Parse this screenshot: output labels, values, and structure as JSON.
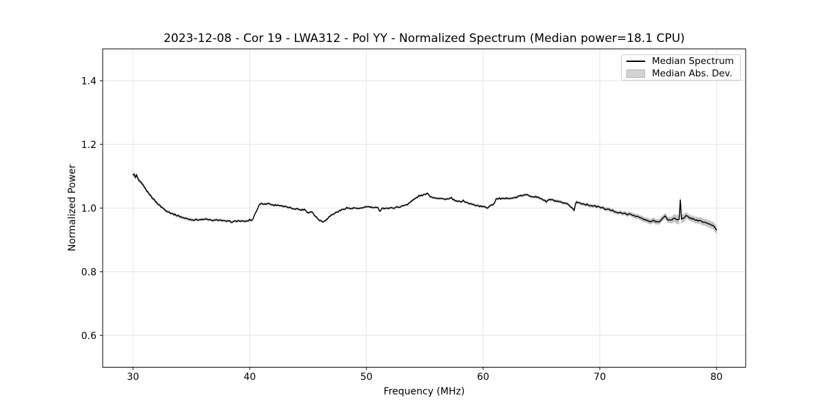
{
  "figure": {
    "background": "#ffffff"
  },
  "chart_data": {
    "type": "line",
    "title": "2023-12-08 - Cor 19 - LWA312 - Pol YY - Normalized Spectrum (Median power=18.1 CPU)",
    "xlabel": "Frequency (MHz)",
    "ylabel": "Normalized Power",
    "xlim": [
      27.4,
      82.5
    ],
    "ylim": [
      0.5,
      1.5
    ],
    "x_range_mhz": [
      30,
      80
    ],
    "xticks": [
      30,
      40,
      50,
      60,
      70,
      80
    ],
    "xtick_labels": [
      "30",
      "40",
      "50",
      "60",
      "70",
      "80"
    ],
    "yticks": [
      0.6,
      0.8,
      1.0,
      1.2,
      1.4
    ],
    "ytick_labels": [
      "0.6",
      "0.8",
      "1.0",
      "1.2",
      "1.4"
    ],
    "grid": true,
    "legend": {
      "position": "upper right",
      "entries": [
        {
          "label": "Median Spectrum",
          "type": "line",
          "color": "#000000"
        },
        {
          "label": "Median Abs. Dev.",
          "type": "patch",
          "fill": "#d3d3d3",
          "edge": "#aeaeae"
        }
      ]
    },
    "colors": {
      "line": "#000000",
      "band": "#bfbfbf",
      "grid": "#e4e4e4",
      "spine": "#000000",
      "text": "#000000"
    },
    "series": [
      {
        "name": "Median Spectrum",
        "anchors_x": [
          30.0,
          30.1,
          30.2,
          30.3,
          30.45,
          30.6,
          30.8,
          31.0,
          31.3,
          31.6,
          32.0,
          32.4,
          32.8,
          33.2,
          33.6,
          34.0,
          34.4,
          34.8,
          35.2,
          35.6,
          36.0,
          36.2,
          36.5,
          37.0,
          37.4,
          37.8,
          38.2,
          38.6,
          39.0,
          39.4,
          39.8,
          40.0,
          40.2,
          40.5,
          40.8,
          41.0,
          41.3,
          41.6,
          42.0,
          42.4,
          42.8,
          43.2,
          43.6,
          44.0,
          44.4,
          44.7,
          45.0,
          45.3,
          45.6,
          46.0,
          46.3,
          46.6,
          47.0,
          47.5,
          48.0,
          48.3,
          48.6,
          49.0,
          49.4,
          49.8,
          50.2,
          50.6,
          51.0,
          51.15,
          51.3,
          51.6,
          52.0,
          52.5,
          53.0,
          53.5,
          54.0,
          54.5,
          55.0,
          55.3,
          55.5,
          56.0,
          56.5,
          57.0,
          57.3,
          57.6,
          58.0,
          58.3,
          58.6,
          59.0,
          59.5,
          60.0,
          60.4,
          60.6,
          60.9,
          61.1,
          61.4,
          61.8,
          62.2,
          62.6,
          63.0,
          63.4,
          63.8,
          64.2,
          64.6,
          65.0,
          65.4,
          65.7,
          66.0,
          66.4,
          66.8,
          67.2,
          67.6,
          67.8,
          67.95,
          68.3,
          68.7,
          69.0,
          69.5,
          70.0,
          70.5,
          71.0,
          71.5,
          72.0,
          72.4,
          72.8,
          73.2,
          73.6,
          74.0,
          74.3,
          74.6,
          75.0,
          75.4,
          75.6,
          75.8,
          76.1,
          76.4,
          76.6,
          76.8,
          76.9,
          77.0,
          77.2,
          77.4,
          77.6,
          77.8,
          78.0,
          78.3,
          78.6,
          79.0,
          79.3,
          79.6,
          79.8,
          80.0
        ],
        "anchors_y": [
          1.103,
          1.108,
          1.094,
          1.104,
          1.088,
          1.082,
          1.074,
          1.063,
          1.048,
          1.035,
          1.018,
          1.004,
          0.993,
          0.985,
          0.979,
          0.974,
          0.968,
          0.965,
          0.963,
          0.964,
          0.963,
          0.966,
          0.962,
          0.961,
          0.963,
          0.959,
          0.958,
          0.957,
          0.96,
          0.958,
          0.959,
          0.963,
          0.961,
          0.985,
          1.008,
          1.016,
          1.012,
          1.015,
          1.009,
          1.01,
          1.005,
          1.003,
          0.999,
          0.998,
          0.994,
          0.996,
          0.985,
          0.99,
          0.975,
          0.962,
          0.956,
          0.966,
          0.978,
          0.988,
          0.996,
          1.001,
          0.998,
          1.0,
          0.997,
          1.003,
          1.004,
          1.001,
          1.0,
          0.989,
          0.999,
          1.0,
          0.999,
          1.002,
          1.005,
          1.012,
          1.025,
          1.038,
          1.042,
          1.046,
          1.035,
          1.032,
          1.029,
          1.028,
          1.031,
          1.022,
          1.02,
          1.023,
          1.017,
          1.012,
          1.008,
          1.004,
          1.001,
          1.009,
          1.012,
          1.028,
          1.03,
          1.028,
          1.032,
          1.031,
          1.036,
          1.04,
          1.041,
          1.037,
          1.034,
          1.03,
          1.02,
          1.027,
          1.024,
          1.02,
          1.016,
          1.012,
          1.002,
          0.993,
          1.019,
          1.016,
          1.012,
          1.01,
          1.006,
          1.003,
          0.997,
          0.993,
          0.987,
          0.983,
          0.981,
          0.978,
          0.974,
          0.967,
          0.961,
          0.957,
          0.96,
          0.956,
          0.968,
          0.974,
          0.964,
          0.962,
          0.968,
          0.964,
          0.966,
          1.027,
          0.964,
          0.968,
          0.975,
          0.972,
          0.968,
          0.966,
          0.962,
          0.959,
          0.955,
          0.951,
          0.947,
          0.94,
          0.932
        ]
      }
    ],
    "band": {
      "name": "Median Abs. Dev.",
      "anchor_x": [
        30,
        31,
        33,
        40,
        50,
        60,
        65,
        70,
        72,
        74,
        75,
        76,
        76.9,
        77.5,
        78.5,
        79.5,
        80
      ],
      "halfwidth": [
        0.007,
        0.005,
        0.004,
        0.0035,
        0.003,
        0.0035,
        0.004,
        0.005,
        0.006,
        0.008,
        0.008,
        0.009,
        0.016,
        0.009,
        0.01,
        0.011,
        0.013
      ]
    },
    "noise": {
      "amplitude": 0.0022,
      "band_edge_amplitude": 0.0012,
      "sample_step_mhz": 0.1
    }
  }
}
